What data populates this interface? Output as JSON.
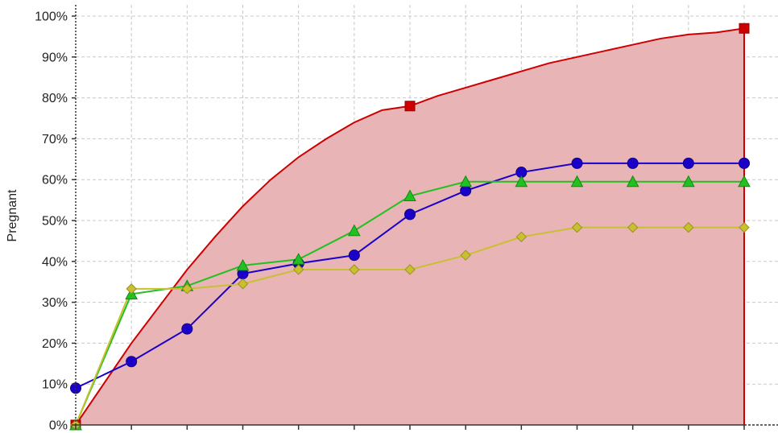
{
  "chart_data": {
    "type": "line",
    "ylabel": "Pregnant",
    "xlabel": "",
    "ylim": [
      0,
      100
    ],
    "xlim": [
      0,
      12
    ],
    "y_ticks": [
      "0%",
      "10%",
      "20%",
      "30%",
      "40%",
      "50%",
      "60%",
      "70%",
      "80%",
      "90%",
      "100%"
    ],
    "grid": true,
    "x": [
      0,
      1,
      2,
      3,
      4,
      5,
      6,
      7,
      8,
      9,
      10,
      11,
      12
    ],
    "reference_curve": {
      "color": "#cc0000",
      "fill": "#e8b4b6",
      "x": [
        0,
        0.5,
        1,
        1.5,
        2,
        2.5,
        3,
        3.5,
        4,
        4.5,
        5,
        5.5,
        6,
        6.5,
        7,
        7.5,
        8,
        8.5,
        9,
        9.5,
        10,
        10.5,
        11,
        11.5,
        12
      ],
      "values": [
        0,
        10,
        20,
        29,
        38,
        46,
        53.5,
        60,
        65.5,
        70,
        74,
        77,
        78,
        80.5,
        82.5,
        84.5,
        86.5,
        88.5,
        90,
        91.5,
        93,
        94.5,
        95.5,
        96,
        97
      ],
      "marked_points": [
        {
          "x": 0,
          "y": 0
        },
        {
          "x": 6,
          "y": 78
        },
        {
          "x": 12,
          "y": 97
        }
      ]
    },
    "series": [
      {
        "color": "#1a00c8",
        "marker": "circle",
        "values": [
          9,
          15.5,
          23.5,
          37,
          39.5,
          41.5,
          51.5,
          57.3,
          61.8,
          64,
          64,
          64,
          64
        ]
      },
      {
        "color": "#22c020",
        "marker": "triangle",
        "values": [
          0,
          32,
          34,
          39,
          40.5,
          47.5,
          56,
          59.5,
          59.5,
          59.5,
          59.5,
          59.5,
          59.5
        ]
      },
      {
        "color": "#c8c030",
        "marker": "diamond",
        "values": [
          0,
          33.3,
          33.3,
          34.5,
          38,
          38,
          38,
          41.5,
          46,
          48.3,
          48.3,
          48.3,
          48.3
        ]
      }
    ]
  }
}
